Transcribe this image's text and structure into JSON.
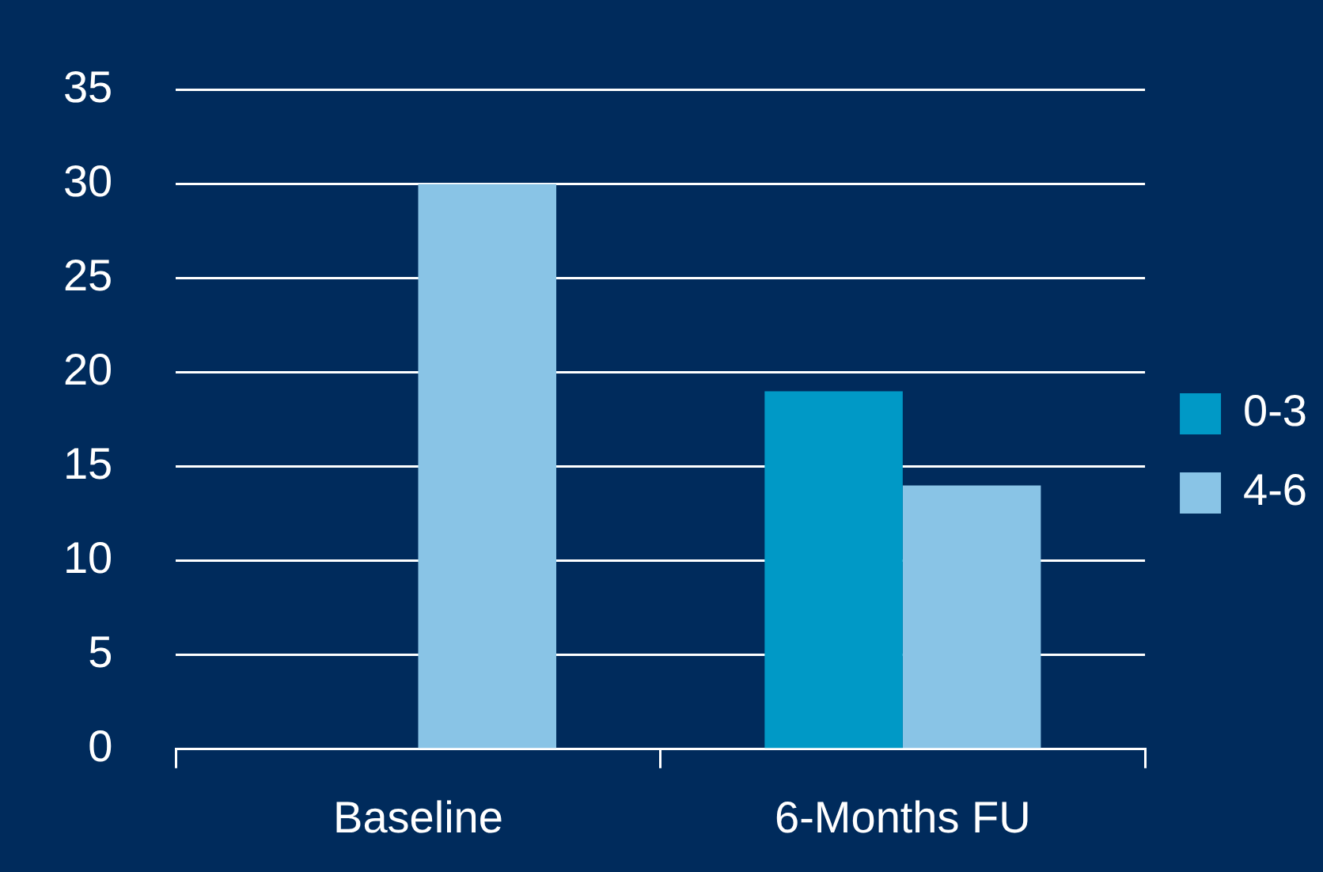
{
  "chart_data": {
    "type": "bar",
    "categories": [
      "Baseline",
      "6-Months FU"
    ],
    "series": [
      {
        "name": "0-3",
        "color": "#0099c6",
        "values": [
          0,
          19
        ]
      },
      {
        "name": "4-6",
        "color": "#89c4e6",
        "values": [
          30,
          14
        ]
      }
    ],
    "ylim": [
      0,
      35
    ],
    "yticks": [
      0,
      5,
      10,
      15,
      20,
      25,
      30,
      35
    ],
    "grid": "y",
    "legend": "right"
  }
}
